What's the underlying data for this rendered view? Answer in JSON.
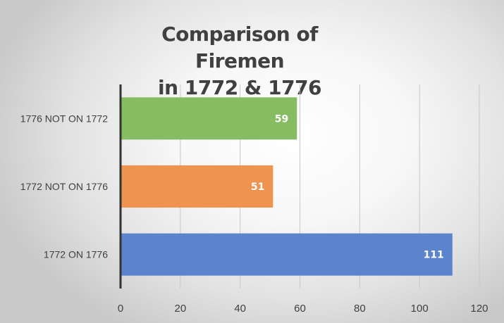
{
  "chart_data": {
    "type": "bar",
    "orientation": "horizontal",
    "title_lines": [
      "Comparison of Firemen",
      "in 1772 & 1776"
    ],
    "categories": [
      "1776 NOT ON 1772",
      "1772 NOT ON 1776",
      "1772 ON 1776"
    ],
    "values": [
      59,
      51,
      111
    ],
    "data_labels": [
      "59",
      "51",
      "111"
    ],
    "colors": [
      "#86bd62",
      "#ef9350",
      "#5b84cc"
    ],
    "xlim": [
      0,
      120
    ],
    "xticks": [
      0,
      20,
      40,
      60,
      80,
      100,
      120
    ],
    "xtick_labels": [
      "0",
      "20",
      "40",
      "60",
      "80",
      "100",
      "120"
    ],
    "grid": "vertical",
    "legend": "none"
  }
}
